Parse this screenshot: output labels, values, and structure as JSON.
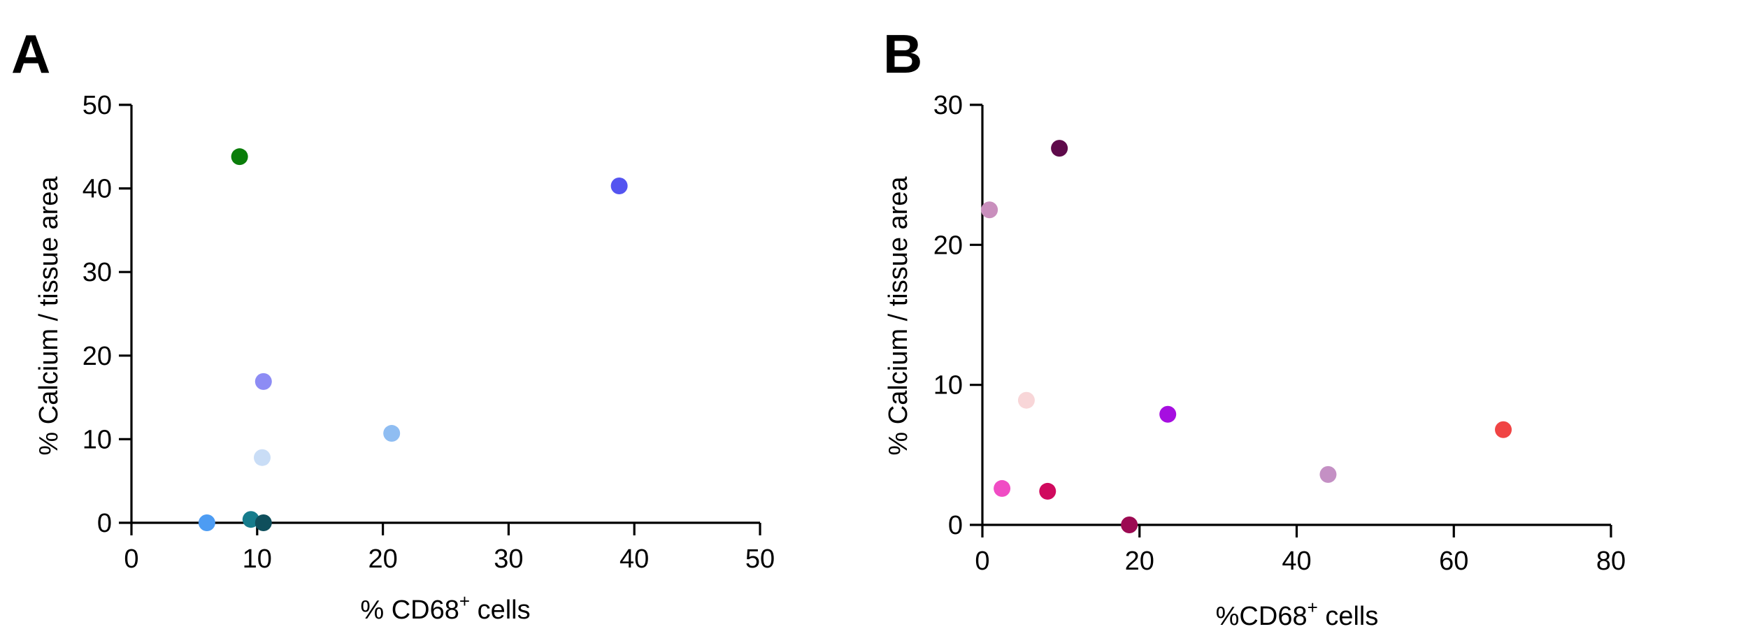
{
  "figure": {
    "panels": [
      "A",
      "B"
    ]
  },
  "chart_data": [
    {
      "type": "scatter",
      "panel": "A",
      "xlabel": "% CD68",
      "xlabel_sup": "+",
      "xlabel_suffix": " cells",
      "ylabel": "% Calcium / tissue area",
      "xlim": [
        0,
        50
      ],
      "ylim": [
        0,
        50
      ],
      "xticks": [
        "0",
        "10",
        "20",
        "30",
        "40",
        "50"
      ],
      "yticks": [
        "0",
        "10",
        "20",
        "30",
        "40",
        "50"
      ],
      "grid": false,
      "legend": "none",
      "points": [
        {
          "x": 8.6,
          "y": 43.8,
          "color": "#0a7d0a"
        },
        {
          "x": 38.8,
          "y": 40.3,
          "color": "#5454f0"
        },
        {
          "x": 10.5,
          "y": 16.9,
          "color": "#8d8cf4"
        },
        {
          "x": 20.7,
          "y": 10.7,
          "color": "#8fbdf2"
        },
        {
          "x": 10.4,
          "y": 7.8,
          "color": "#c9ddf6"
        },
        {
          "x": 6.0,
          "y": 0.0,
          "color": "#4d9cf3"
        },
        {
          "x": 9.5,
          "y": 0.4,
          "color": "#167c8c"
        },
        {
          "x": 10.5,
          "y": 0.0,
          "color": "#0f4f5c"
        }
      ]
    },
    {
      "type": "scatter",
      "panel": "B",
      "xlabel": "%CD68",
      "xlabel_sup": "+",
      "xlabel_suffix": " cells",
      "ylabel": "% Calcium / tissue area",
      "xlim": [
        0,
        80
      ],
      "ylim": [
        0,
        30
      ],
      "xticks": [
        "0",
        "20",
        "40",
        "60",
        "80"
      ],
      "yticks": [
        "0",
        "10",
        "20",
        "30"
      ],
      "grid": false,
      "legend": "none",
      "points": [
        {
          "x": 9.8,
          "y": 26.9,
          "color": "#5e0a4a"
        },
        {
          "x": 0.9,
          "y": 22.5,
          "color": "#c98fbd"
        },
        {
          "x": 5.6,
          "y": 8.9,
          "color": "#f8d6d8"
        },
        {
          "x": 23.6,
          "y": 7.9,
          "color": "#a60ee0"
        },
        {
          "x": 66.3,
          "y": 6.8,
          "color": "#f04444"
        },
        {
          "x": 44.0,
          "y": 3.6,
          "color": "#c490c4"
        },
        {
          "x": 2.5,
          "y": 2.6,
          "color": "#f04cc4"
        },
        {
          "x": 8.3,
          "y": 2.4,
          "color": "#d00a5e"
        },
        {
          "x": 18.7,
          "y": 0.0,
          "color": "#9c0a52"
        }
      ]
    }
  ]
}
